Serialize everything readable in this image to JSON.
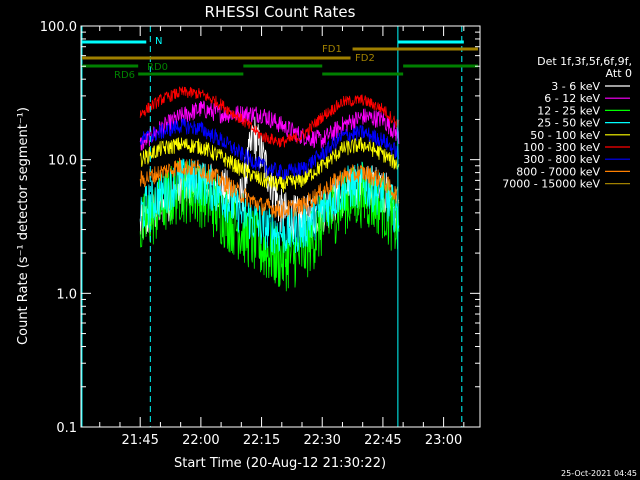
{
  "chart_data": {
    "type": "line",
    "title": "RHESSI Count Rates",
    "xlabel": "Start Time (20-Aug-12 21:30:22)",
    "ylabel": "Count Rate (s⁻¹ detector segment⁻¹)",
    "y_scale": "log",
    "ylim": [
      0.1,
      100.0
    ],
    "xlim": [
      "21:30:22",
      "23:09:00"
    ],
    "x_ticks": [
      "21:45",
      "22:00",
      "22:15",
      "22:30",
      "22:45",
      "23:00"
    ],
    "y_ticks": [
      "0.1",
      "1.0",
      "10.0",
      "100.0"
    ],
    "timestamp": "25-Oct-2021 04:45",
    "legend": {
      "header": [
        "Det 1f,3f,5f,6f,9f,",
        "Att 0"
      ],
      "placement": "right"
    },
    "series": [
      {
        "name": "3 - 6 keV",
        "color": "#ffffff",
        "x": [
          "21:45",
          "21:50",
          "21:55",
          "22:00",
          "22:05",
          "22:10",
          "22:13",
          "22:16",
          "22:20",
          "22:25",
          "22:30",
          "22:35",
          "22:40",
          "22:45",
          "22:49"
        ],
        "y": [
          3.2,
          4.5,
          6.0,
          6.8,
          6.0,
          5.0,
          16.0,
          9.0,
          4.0,
          3.5,
          4.2,
          5.5,
          6.5,
          6.0,
          3.8
        ]
      },
      {
        "name": "6 - 12 keV",
        "color": "#ff00ff",
        "x": [
          "21:45",
          "21:50",
          "21:55",
          "22:00",
          "22:05",
          "22:10",
          "22:15",
          "22:20",
          "22:25",
          "22:30",
          "22:35",
          "22:40",
          "22:45",
          "22:49"
        ],
        "y": [
          13,
          17,
          21,
          24,
          22,
          22,
          22,
          18,
          15,
          14,
          18,
          21,
          20,
          15
        ]
      },
      {
        "name": "12 - 25 keV",
        "color": "#00ff00",
        "x": [
          "21:45",
          "21:50",
          "21:55",
          "22:00",
          "22:05",
          "22:10",
          "22:15",
          "22:20",
          "22:25",
          "22:30",
          "22:35",
          "22:40",
          "22:45",
          "22:49"
        ],
        "y": [
          3.0,
          4.5,
          6.0,
          5.5,
          4.0,
          3.0,
          2.2,
          1.8,
          2.0,
          3.2,
          4.8,
          5.5,
          4.5,
          3.0
        ]
      },
      {
        "name": "25 - 50 keV",
        "color": "#00ffff",
        "x": [
          "21:45",
          "21:50",
          "21:55",
          "22:00",
          "22:05",
          "22:10",
          "22:15",
          "22:20",
          "22:25",
          "22:30",
          "22:35",
          "22:40",
          "22:45",
          "22:49"
        ],
        "y": [
          4.0,
          5.5,
          7.0,
          6.8,
          5.5,
          4.0,
          3.2,
          2.8,
          3.0,
          4.2,
          6.0,
          6.5,
          5.5,
          3.8
        ]
      },
      {
        "name": "50 - 100 keV",
        "color": "#ffff00",
        "x": [
          "21:45",
          "21:50",
          "21:55",
          "22:00",
          "22:05",
          "22:10",
          "22:15",
          "22:20",
          "22:25",
          "22:30",
          "22:35",
          "22:40",
          "22:45",
          "22:49"
        ],
        "y": [
          10,
          12,
          13,
          12.5,
          10.5,
          8.5,
          7.0,
          6.5,
          7.0,
          9.0,
          12,
          13,
          11,
          9
        ]
      },
      {
        "name": "100 - 300 keV",
        "color": "#ff0000",
        "x": [
          "21:45",
          "21:50",
          "21:55",
          "22:00",
          "22:05",
          "22:10",
          "22:15",
          "22:20",
          "22:25",
          "22:30",
          "22:35",
          "22:40",
          "22:45",
          "22:49"
        ],
        "y": [
          22,
          28,
          32,
          31,
          26,
          20,
          15,
          13.5,
          15,
          21,
          27,
          28,
          24,
          18
        ]
      },
      {
        "name": "300 - 800 keV",
        "color": "#0000ff",
        "x": [
          "21:45",
          "21:50",
          "21:55",
          "22:00",
          "22:05",
          "22:10",
          "22:15",
          "22:20",
          "22:25",
          "22:30",
          "22:35",
          "22:40",
          "22:45",
          "22:49"
        ],
        "y": [
          14,
          16,
          18,
          17,
          14,
          11,
          9,
          8,
          8.5,
          11,
          15,
          16,
          14,
          11
        ]
      },
      {
        "name": "800 - 7000 keV",
        "color": "#ff8000",
        "x": [
          "21:45",
          "21:50",
          "21:55",
          "22:00",
          "22:05",
          "22:10",
          "22:15",
          "22:20",
          "22:25",
          "22:30",
          "22:35",
          "22:40",
          "22:45",
          "22:49"
        ],
        "y": [
          7,
          8,
          9,
          8.5,
          7,
          5.5,
          4.5,
          4.2,
          4.5,
          5.8,
          7.5,
          8,
          7,
          5.2
        ]
      },
      {
        "name": "7000 - 15000 keV",
        "color": "#a08000",
        "x": [],
        "y": []
      }
    ],
    "annotations": {
      "labels": [
        "N",
        "FD1",
        "FD2",
        "RD0",
        "RD6"
      ]
    }
  }
}
